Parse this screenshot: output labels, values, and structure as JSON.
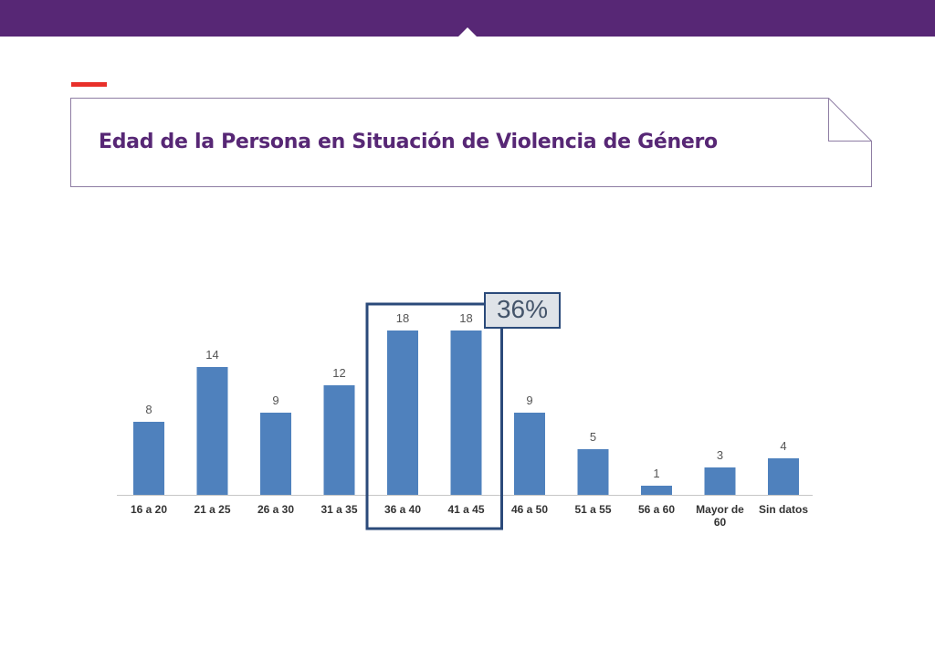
{
  "header": {
    "title": "Edad de la Persona en Situación de Violencia de Género"
  },
  "colors": {
    "header_bar": "#572775",
    "accent": "#e8302a",
    "bar": "#4f81bd",
    "highlight": "#2b4a7a"
  },
  "chart_data": {
    "type": "bar",
    "title": "",
    "xlabel": "",
    "ylabel": "",
    "categories": [
      "16 a 20",
      "21 a 25",
      "26 a 30",
      "31 a 35",
      "36 a 40",
      "41 a 45",
      "46 a 50",
      "51 a 55",
      "56 a 60",
      "Mayor de 60",
      "Sin datos"
    ],
    "values": [
      8,
      14,
      9,
      12,
      18,
      18,
      9,
      5,
      1,
      3,
      4
    ],
    "ylim": [
      0,
      18
    ],
    "grid": false,
    "legend": "none",
    "highlight": {
      "categories": [
        "36 a 40",
        "41 a 45"
      ],
      "label": "36%"
    }
  }
}
